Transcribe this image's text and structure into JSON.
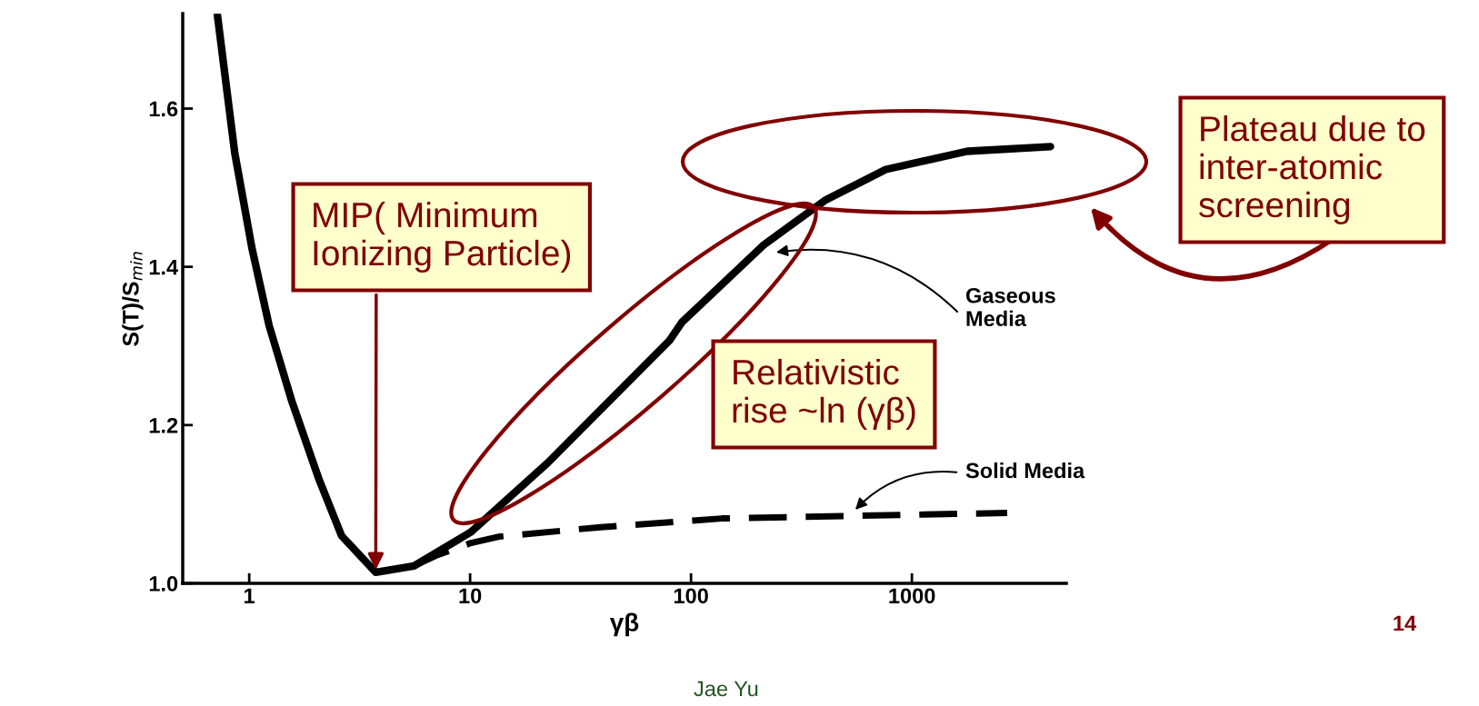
{
  "chart_data": {
    "type": "line",
    "xlabel": "γβ",
    "ylabel": "S(T)/S$_{min}$",
    "log": "x",
    "xlim": [
      0.5,
      5000
    ],
    "ylim": [
      1.0,
      1.72
    ],
    "xticks": [
      1,
      10,
      100,
      1000
    ],
    "yticks": [
      {
        "value": 1.0,
        "label": "1.0"
      },
      1.2,
      1.4,
      {
        "value": 1.6,
        "label": "1.6"
      }
    ],
    "grid": false,
    "legend": false,
    "series": [
      {
        "color": "#000000",
        "line_style": "solid",
        "x": [
          0.718,
          0.86,
          1.03,
          1.23,
          1.56,
          2.06,
          2.62,
          3.74,
          5.57,
          10.1,
          22.4,
          49.7,
          80,
          91,
          214,
          404,
          762,
          1780,
          4240
        ],
        "values": [
          1.718,
          1.544,
          1.423,
          1.326,
          1.23,
          1.133,
          1.06,
          1.014,
          1.022,
          1.065,
          1.152,
          1.249,
          1.307,
          1.33,
          1.428,
          1.484,
          1.523,
          1.546,
          1.552
        ]
      },
      {
        "color": "#000000",
        "line_style": "dashed",
        "x": [
          5.57,
          7,
          10.1,
          13.5,
          39,
          138,
          490,
          2700
        ],
        "values": [
          1.022,
          1.035,
          1.051,
          1.059,
          1.071,
          1.082,
          1.085,
          1.089
        ]
      }
    ],
    "annotations": [
      {
        "text": "MIP( Minimum\nIonizing Particle)",
        "x": 3.74,
        "y": 1.014
      },
      "Relativistic\nrise ~ln (γβ)",
      "Plateau due to\ninter-atomic\nscreening",
      "Gaseous\nMedia",
      "Solid Media",
      "14",
      "Jae Yu"
    ]
  }
}
